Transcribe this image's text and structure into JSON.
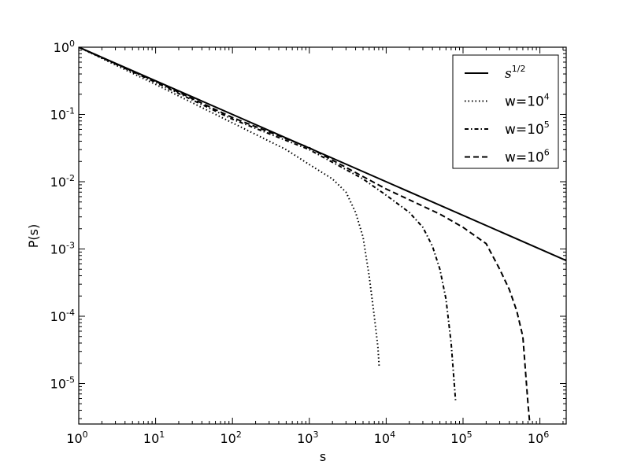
{
  "chart_data": {
    "type": "line",
    "xscale": "log",
    "yscale": "log",
    "xlabel": "s",
    "ylabel": "P(s)",
    "xlim": [
      1,
      2200000
    ],
    "ylim": [
      2.5e-06,
      1
    ],
    "grid": false,
    "legend_position": "top-right",
    "x_ticks": [
      {
        "base": "10",
        "exp": "0",
        "value": 1
      },
      {
        "base": "10",
        "exp": "1",
        "value": 10
      },
      {
        "base": "10",
        "exp": "2",
        "value": 100
      },
      {
        "base": "10",
        "exp": "3",
        "value": 1000
      },
      {
        "base": "10",
        "exp": "4",
        "value": 10000
      },
      {
        "base": "10",
        "exp": "5",
        "value": 100000
      },
      {
        "base": "10",
        "exp": "6",
        "value": 1000000
      }
    ],
    "y_ticks": [
      {
        "base": "10",
        "exp": "0",
        "value": 1
      },
      {
        "base": "10",
        "exp": "-1",
        "value": 0.1
      },
      {
        "base": "10",
        "exp": "-2",
        "value": 0.01
      },
      {
        "base": "10",
        "exp": "-3",
        "value": 0.001
      },
      {
        "base": "10",
        "exp": "-4",
        "value": 0.0001
      },
      {
        "base": "10",
        "exp": "-5",
        "value": 1e-05
      }
    ],
    "series": [
      {
        "legend_prefix": "",
        "legend_base": "s",
        "legend_exp": "1/2",
        "style": "solid",
        "points": [
          [
            1,
            1
          ],
          [
            2200000,
            0.000674
          ]
        ]
      },
      {
        "legend_prefix": "w=",
        "legend_base": "10",
        "legend_exp": "4",
        "style": "dotted",
        "points": [
          [
            1,
            1
          ],
          [
            10,
            0.28
          ],
          [
            100,
            0.075
          ],
          [
            500,
            0.03
          ],
          [
            1000,
            0.018
          ],
          [
            2000,
            0.011
          ],
          [
            3000,
            0.007
          ],
          [
            4000,
            0.0035
          ],
          [
            5000,
            0.0015
          ],
          [
            6000,
            0.0004
          ],
          [
            7000,
            0.0001
          ],
          [
            7800,
            3.5e-05
          ],
          [
            8100,
            1.8e-05
          ]
        ]
      },
      {
        "legend_prefix": "w=",
        "legend_base": "10",
        "legend_exp": "5",
        "style": "dashdot",
        "points": [
          [
            1,
            1
          ],
          [
            10,
            0.3
          ],
          [
            100,
            0.085
          ],
          [
            1000,
            0.03
          ],
          [
            5000,
            0.011
          ],
          [
            10000,
            0.0063
          ],
          [
            20000,
            0.0035
          ],
          [
            30000,
            0.0021
          ],
          [
            40000,
            0.0011
          ],
          [
            50000,
            0.0005
          ],
          [
            60000,
            0.00018
          ],
          [
            70000,
            4e-05
          ],
          [
            80000,
            5.5e-06
          ]
        ]
      },
      {
        "legend_prefix": "w=",
        "legend_base": "10",
        "legend_exp": "6",
        "style": "dashed",
        "points": [
          [
            1,
            1
          ],
          [
            10,
            0.31
          ],
          [
            100,
            0.09
          ],
          [
            1000,
            0.032
          ],
          [
            10000,
            0.0078
          ],
          [
            50000,
            0.0033
          ],
          [
            100000,
            0.0021
          ],
          [
            200000,
            0.0012
          ],
          [
            300000,
            0.0005
          ],
          [
            400000,
            0.00025
          ],
          [
            500000,
            0.00012
          ],
          [
            600000,
            5e-05
          ],
          [
            700000,
            5e-06
          ],
          [
            740000,
            2.5e-06
          ]
        ]
      }
    ]
  }
}
